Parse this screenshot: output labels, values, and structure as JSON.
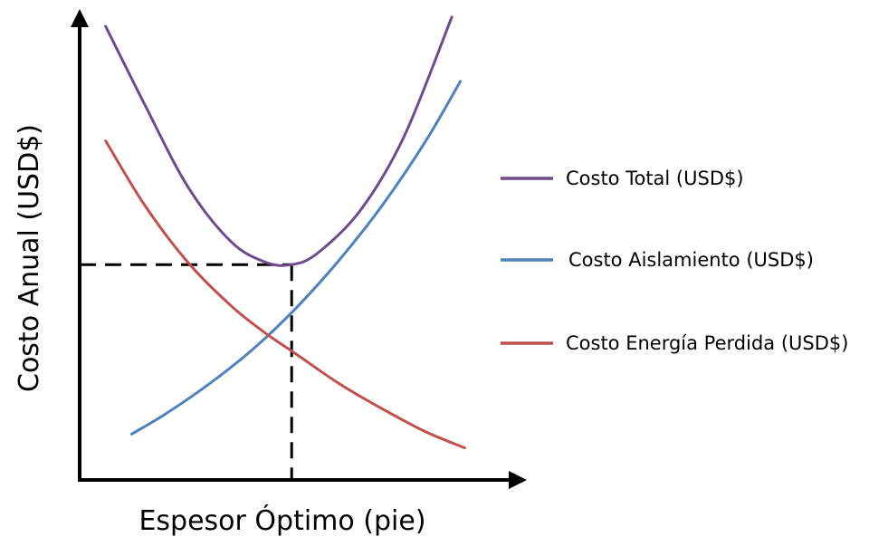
{
  "chart_data": {
    "type": "line",
    "title": "",
    "xlabel": "Espesor Óptimo (pie)",
    "ylabel": "Costo Anual (USD$)",
    "xlim": [
      0,
      10
    ],
    "ylim": [
      0,
      10
    ],
    "grid": false,
    "ticks": false,
    "legend_position": "right",
    "series": [
      {
        "name": "Costo Total (USD$)",
        "color": "#6c4c8c",
        "x": [
          0.6,
          1.5,
          2.5,
          3.5,
          4.3,
          4.9,
          5.5,
          6.5,
          7.5,
          8.6
        ],
        "y": [
          9.9,
          8.2,
          6.4,
          5.2,
          4.75,
          4.7,
          4.95,
          5.9,
          7.5,
          10.1
        ]
      },
      {
        "name": "Costo Aislamiento (USD$)",
        "color": "#4e81bd",
        "x": [
          1.2,
          2.0,
          3.0,
          4.0,
          5.0,
          6.0,
          7.0,
          8.0,
          8.8
        ],
        "y": [
          1.0,
          1.45,
          2.1,
          2.85,
          3.75,
          4.8,
          6.0,
          7.4,
          8.7
        ]
      },
      {
        "name": "Costo Energía Perdida (USD$)",
        "color": "#c0504d",
        "x": [
          0.6,
          1.5,
          2.5,
          3.5,
          4.3,
          5.0,
          6.0,
          7.0,
          8.0,
          8.9
        ],
        "y": [
          7.4,
          6.0,
          4.75,
          3.8,
          3.2,
          2.75,
          2.1,
          1.55,
          1.05,
          0.7
        ]
      }
    ],
    "optimum": {
      "x": 4.9,
      "y": 4.7
    },
    "optimum_line_color": "#000000"
  }
}
